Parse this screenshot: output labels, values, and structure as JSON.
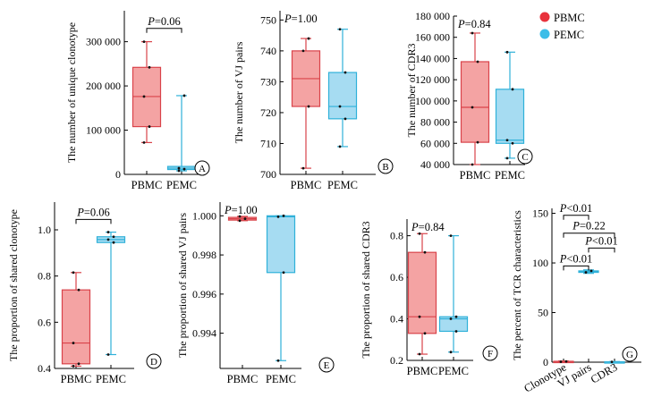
{
  "legend": [
    {
      "label": "PBMC",
      "color": "#e8323c"
    },
    {
      "label": "PEMC",
      "color": "#3cbde8"
    }
  ],
  "colors": {
    "PBMC_fill": "#f4a3a3",
    "PBMC_stroke": "#d9434a",
    "PEMC_fill": "#a6dcf2",
    "PEMC_stroke": "#2fb1d9"
  },
  "chart_data": [
    {
      "panel": "A",
      "type": "box",
      "ylabel": "The number of unique clonotype",
      "categories": [
        "PBMC",
        "PEMC"
      ],
      "yticks": [
        0,
        100000,
        200000,
        300000
      ],
      "ytick_labels": [
        "0",
        "100 000",
        "200 000",
        "300 000"
      ],
      "ylim": [
        0,
        370000
      ],
      "boxes": [
        {
          "min": 72000,
          "q1": 108000,
          "median": 176000,
          "q3": 242000,
          "max": 300000,
          "points": [
            72000,
            108000,
            176000,
            242000,
            300000
          ]
        },
        {
          "min": 8000,
          "q1": 11000,
          "median": 14000,
          "q3": 18000,
          "max": 178000,
          "points": [
            8000,
            12000,
            14000,
            178000
          ]
        }
      ],
      "comparisons": [
        {
          "label": "P=0.06",
          "from": 0,
          "to": 1,
          "y": 330000
        }
      ]
    },
    {
      "panel": "B",
      "type": "box",
      "ylabel": "The number of VJ pairs",
      "categories": [
        "PBMC",
        "PEMC"
      ],
      "yticks": [
        700,
        710,
        720,
        730,
        740,
        750
      ],
      "ytick_labels": [
        "700",
        "710",
        "720",
        "730",
        "740",
        "750"
      ],
      "ylim": [
        700,
        753
      ],
      "boxes": [
        {
          "min": 702,
          "q1": 722,
          "median": 731,
          "q3": 740,
          "max": 744,
          "points": [
            702,
            722,
            740,
            744
          ]
        },
        {
          "min": 709,
          "q1": 718,
          "median": 722,
          "q3": 733,
          "max": 747,
          "points": [
            709,
            718,
            722,
            733,
            747
          ]
        }
      ],
      "comparisons": [
        {
          "label": "P=1.00",
          "position": "top-left"
        }
      ]
    },
    {
      "panel": "C",
      "type": "box",
      "ylabel": "The number of CDR3",
      "categories": [
        "PBMC",
        "PEMC"
      ],
      "yticks": [
        40000,
        60000,
        80000,
        100000,
        120000,
        140000,
        160000,
        180000
      ],
      "ytick_labels": [
        "40 000",
        "60 000",
        "80 000",
        "100 000",
        "120 000",
        "140 000",
        "160 000",
        "180 000"
      ],
      "ylim": [
        40000,
        180000
      ],
      "boxes": [
        {
          "min": 40000,
          "q1": 61000,
          "median": 94000,
          "q3": 137000,
          "max": 164000,
          "points": [
            40000,
            61000,
            94000,
            137000,
            164000
          ]
        },
        {
          "min": 46000,
          "q1": 60000,
          "median": 63000,
          "q3": 111000,
          "max": 146000,
          "points": [
            46000,
            60000,
            63000,
            111000,
            146000
          ]
        }
      ],
      "comparisons": [
        {
          "label": "P=0.84",
          "position": "top-left"
        }
      ]
    },
    {
      "panel": "D",
      "type": "box",
      "ylabel": "The proportion of shared clonotype",
      "categories": [
        "PBMC",
        "PEMC"
      ],
      "yticks": [
        0.4,
        0.6,
        0.8,
        1.0
      ],
      "ytick_labels": [
        "0.4",
        "0.6",
        "0.8",
        "1.0"
      ],
      "ylim": [
        0.4,
        1.12
      ],
      "boxes": [
        {
          "min": 0.41,
          "q1": 0.42,
          "median": 0.51,
          "q3": 0.74,
          "max": 0.815,
          "points": [
            0.41,
            0.42,
            0.51,
            0.74,
            0.815
          ]
        },
        {
          "min": 0.46,
          "q1": 0.945,
          "median": 0.958,
          "q3": 0.97,
          "max": 0.99,
          "points": [
            0.46,
            0.945,
            0.958,
            0.97,
            0.99
          ]
        }
      ],
      "comparisons": [
        {
          "label": "P=0.06",
          "from": 0,
          "to": 1,
          "y": 1.045
        }
      ]
    },
    {
      "panel": "E",
      "type": "box",
      "ylabel": "The proportion of shared VJ pairs",
      "categories": [
        "PBMC",
        "PEMC"
      ],
      "yticks": [
        0.994,
        0.996,
        0.998,
        1.0
      ],
      "ytick_labels": [
        "0.994",
        "0.996",
        "0.998",
        "1.000"
      ],
      "ylim": [
        0.9922,
        1.0007
      ],
      "boxes": [
        {
          "min": 0.99975,
          "q1": 0.99978,
          "median": 0.99985,
          "q3": 0.99992,
          "max": 0.99997,
          "points": [
            0.99975,
            0.99985,
            0.99997
          ]
        },
        {
          "min": 0.9926,
          "q1": 0.9971,
          "median": 0.99995,
          "q3": 1.0,
          "max": 1.0,
          "points": [
            0.9926,
            0.9971,
            0.99995,
            1.0
          ]
        }
      ],
      "comparisons": [
        {
          "label": "P=1.00",
          "position": "top-left"
        }
      ]
    },
    {
      "panel": "F",
      "type": "box",
      "ylabel": "The proportion of shared CDR3",
      "categories": [
        "PBMC",
        "PEMC"
      ],
      "yticks": [
        0.2,
        0.4,
        0.6,
        0.8
      ],
      "ytick_labels": [
        "0.2",
        "0.4",
        "0.6",
        "0.8"
      ],
      "ylim": [
        0.2,
        0.88
      ],
      "boxes": [
        {
          "min": 0.23,
          "q1": 0.33,
          "median": 0.41,
          "q3": 0.72,
          "max": 0.81,
          "points": [
            0.23,
            0.33,
            0.41,
            0.72,
            0.81
          ]
        },
        {
          "min": 0.24,
          "q1": 0.34,
          "median": 0.4,
          "q3": 0.41,
          "max": 0.8,
          "points": [
            0.24,
            0.34,
            0.4,
            0.41,
            0.8
          ]
        }
      ],
      "comparisons": [
        {
          "label": "P=0.84",
          "position": "top-left"
        }
      ]
    },
    {
      "panel": "G",
      "type": "box",
      "ylabel": "The percent of TCR characteristics",
      "categories": [
        "Clonotype",
        "VJ pairs",
        "CDR3"
      ],
      "yticks": [
        0,
        50,
        100,
        150
      ],
      "ytick_labels": [
        "0",
        "50",
        "100",
        "150"
      ],
      "ylim": [
        0,
        155
      ],
      "boxes": [
        {
          "min": 0.2,
          "q1": 0.4,
          "median": 0.6,
          "q3": 0.9,
          "max": 1.2,
          "color": "PBMC",
          "points": [
            0.4,
            0.8
          ]
        },
        {
          "min": 89.5,
          "q1": 90.5,
          "median": 91,
          "q3": 92,
          "max": 93,
          "color": "PEMC",
          "points": [
            90.5,
            92
          ]
        },
        {
          "min": 0.1,
          "q1": 0.2,
          "median": 0.3,
          "q3": 0.4,
          "max": 0.6,
          "color": "PEMC",
          "points": [
            0.3
          ]
        }
      ],
      "comparisons": [
        {
          "label": "P<0.01",
          "from": 0,
          "to": 1,
          "y": 148
        },
        {
          "label": "P=0.22",
          "from": 0,
          "to": 2,
          "y": 130
        },
        {
          "label": "P<0.01",
          "from": 1,
          "to": 2,
          "y": 115
        },
        {
          "label": "P<0.01",
          "from": 0,
          "to": 1,
          "y": 97
        }
      ]
    }
  ]
}
